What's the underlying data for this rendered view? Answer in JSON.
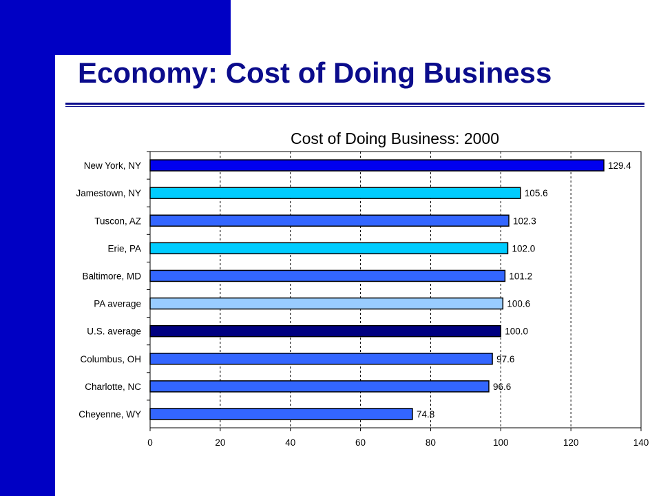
{
  "slide": {
    "title": "Economy:  Cost of Doing Business",
    "band_color": "#0000c4",
    "title_color": "#0b0c8c"
  },
  "chart_data": {
    "type": "bar",
    "orientation": "horizontal",
    "title": "Cost of Doing Business: 2000",
    "xlabel": "",
    "ylabel": "",
    "xlim": [
      0,
      140
    ],
    "x_ticks": [
      0,
      20,
      40,
      60,
      80,
      100,
      120,
      140
    ],
    "grid": "vertical dashed",
    "categories": [
      "New York, NY",
      "Jamestown, NY",
      "Tuscon, AZ",
      "Erie, PA",
      "Baltimore, MD",
      "PA average",
      "U.S. average",
      "Columbus, OH",
      "Charlotte, NC",
      "Cheyenne, WY"
    ],
    "values": [
      129.4,
      105.6,
      102.3,
      102.0,
      101.2,
      100.6,
      100.0,
      97.6,
      96.6,
      74.8
    ],
    "value_labels": [
      "129.4",
      "105.6",
      "102.3",
      "102.0",
      "101.2",
      "100.6",
      "100.0",
      "97.6",
      "96.6",
      "74.8"
    ],
    "bar_colors": [
      "#0000ee",
      "#00ccff",
      "#3366ff",
      "#00ccff",
      "#3366ff",
      "#99ccff",
      "#000080",
      "#3366ff",
      "#3366ff",
      "#3366ff"
    ]
  }
}
